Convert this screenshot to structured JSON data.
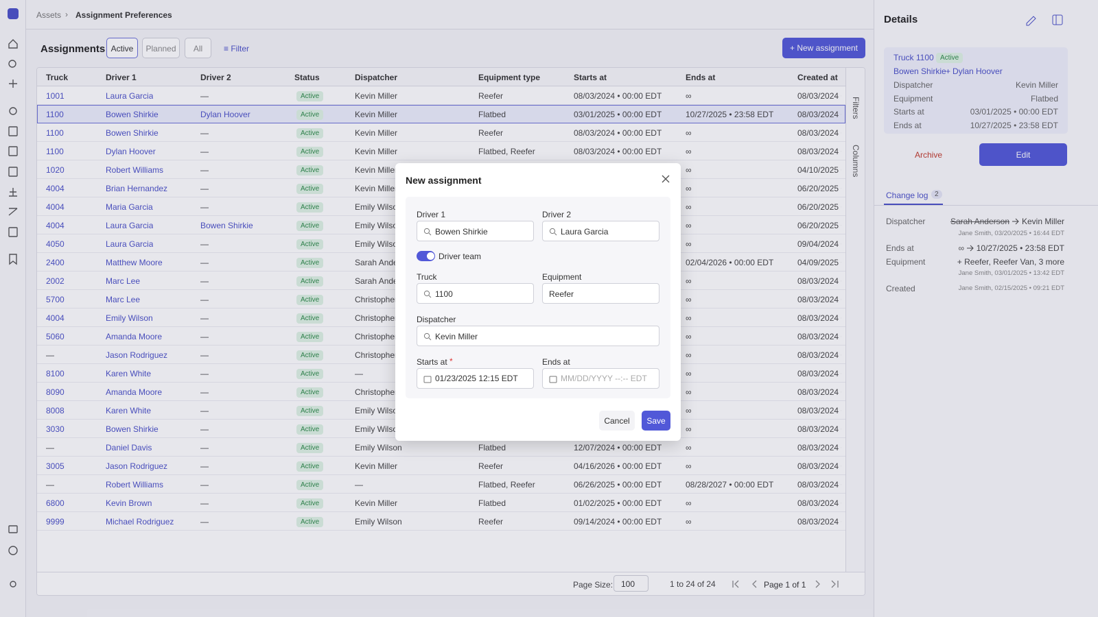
{
  "breadcrumb": [
    "Assets",
    "Assignment Preferences"
  ],
  "toolbar": {
    "title": "Assignments",
    "tabs": [
      "Active",
      "Planned",
      "All"
    ],
    "filter": "Filter",
    "new_button": "New assignment"
  },
  "table": {
    "columns": [
      "Truck",
      "Driver 1",
      "Driver 2",
      "Status",
      "Dispatcher",
      "Equipment type",
      "Starts at",
      "Ends at",
      "Created at"
    ],
    "rows": [
      [
        "1001",
        "Laura Garcia",
        "—",
        "Active",
        "Kevin Miller",
        "Reefer",
        "08/03/2024 • 00:00 EDT",
        "∞",
        "08/03/2024 •"
      ],
      [
        "1100",
        "Bowen Shirkie",
        "Dylan Hoover",
        "Active",
        "Kevin Miller",
        "Flatbed",
        "03/01/2025 • 00:00 EDT",
        "10/27/2025 • 23:58 EDT",
        "08/03/2024 •"
      ],
      [
        "1100",
        "Bowen Shirkie",
        "—",
        "Active",
        "Kevin Miller",
        "Reefer",
        "08/03/2024 • 00:00 EDT",
        "∞",
        "08/03/2024 •"
      ],
      [
        "1100",
        "Dylan Hoover",
        "—",
        "Active",
        "Kevin Miller",
        "Flatbed, Reefer",
        "08/03/2024 • 00:00 EDT",
        "∞",
        "08/03/2024 •"
      ],
      [
        "1020",
        "Robert Williams",
        "—",
        "Active",
        "Kevin Miller",
        null,
        null,
        "∞",
        "04/10/2025 •"
      ],
      [
        "4004",
        "Brian Hernandez",
        "—",
        "Active",
        "Kevin Miller",
        null,
        null,
        "∞",
        "06/20/2025 •"
      ],
      [
        "4004",
        "Maria Garcia",
        "—",
        "Active",
        "Emily Wilson",
        null,
        null,
        "∞",
        "06/20/2025 •"
      ],
      [
        "4004",
        "Laura Garcia",
        "Bowen Shirkie",
        "Active",
        "Emily Wilson",
        null,
        null,
        "∞",
        "06/20/2025 •"
      ],
      [
        "4050",
        "Laura Garcia",
        "—",
        "Active",
        "Emily Wilson",
        null,
        null,
        "∞",
        "09/04/2024 •"
      ],
      [
        "2400",
        "Matthew Moore",
        "—",
        "Active",
        "Sarah Anderson",
        null,
        null,
        "02/04/2026 • 00:00 EDT",
        "04/09/2025 •"
      ],
      [
        "2002",
        "Marc Lee",
        "—",
        "Active",
        "Sarah Anderson",
        null,
        null,
        "∞",
        "08/03/2024 •"
      ],
      [
        "5700",
        "Marc Lee",
        "—",
        "Active",
        "Christopher",
        null,
        null,
        "∞",
        "08/03/2024 •"
      ],
      [
        "4004",
        "Emily Wilson",
        "—",
        "Active",
        "Christopher",
        null,
        null,
        "∞",
        "08/03/2024 •"
      ],
      [
        "5060",
        "Amanda Moore",
        "—",
        "Active",
        "Christopher",
        null,
        null,
        "∞",
        "08/03/2024 •"
      ],
      [
        "—",
        "Jason Rodriguez",
        "—",
        "Active",
        "Christopher",
        null,
        null,
        "∞",
        "08/03/2024 •"
      ],
      [
        "8100",
        "Karen White",
        "—",
        "Active",
        "—",
        null,
        null,
        "∞",
        "08/03/2024 •"
      ],
      [
        "8090",
        "Amanda Moore",
        "—",
        "Active",
        "Christopher",
        null,
        null,
        "∞",
        "08/03/2024 •"
      ],
      [
        "8008",
        "Karen White",
        "—",
        "Active",
        "Emily Wilson",
        null,
        null,
        "∞",
        "08/03/2024 •"
      ],
      [
        "3030",
        "Bowen Shirkie",
        "—",
        "Active",
        "Emily Wilson",
        null,
        null,
        "∞",
        "08/03/2024 •"
      ],
      [
        "—",
        "Daniel Davis",
        "—",
        "Active",
        "Emily Wilson",
        "Flatbed",
        "12/07/2024 • 00:00 EDT",
        "∞",
        "08/03/2024 •"
      ],
      [
        "3005",
        "Jason Rodriguez",
        "—",
        "Active",
        "Kevin Miller",
        "Reefer",
        "04/16/2026 • 00:00 EDT",
        "∞",
        "08/03/2024 •"
      ],
      [
        "—",
        "Robert Williams",
        "—",
        "Active",
        "—",
        "Flatbed, Reefer",
        "06/26/2025 • 00:00 EDT",
        "08/28/2027 • 00:00 EDT",
        "08/03/2024 •"
      ],
      [
        "6800",
        "Kevin Brown",
        "—",
        "Active",
        "Kevin Miller",
        "Flatbed",
        "01/02/2025 • 00:00 EDT",
        "∞",
        "08/03/2024 •"
      ],
      [
        "9999",
        "Michael Rodriguez",
        "—",
        "Active",
        "Emily Wilson",
        "Reefer",
        "09/14/2024 • 00:00 EDT",
        "∞",
        "08/03/2024 •"
      ]
    ]
  },
  "side_tabs": [
    "Filters",
    "Columns"
  ],
  "pagination": {
    "page_size_label": "Page Size:",
    "page_size": 100,
    "range": "1 to 24 of 24",
    "page": "Page 1 of 1"
  },
  "modal": {
    "title": "New assignment",
    "driver1": {
      "label": "Driver 1",
      "value": "Bowen Shirkie"
    },
    "driver2": {
      "label": "Driver 2",
      "value": "Laura Garcia"
    },
    "driver_team": "Driver team",
    "truck": {
      "label": "Truck",
      "value": "1100"
    },
    "equipment": {
      "label": "Equipment",
      "value": "Reefer"
    },
    "dispatcher": {
      "label": "Dispatcher",
      "value": "Kevin Miller"
    },
    "starts_at": {
      "label": "Starts at",
      "required": "*",
      "value": "01/23/2025 12:15 EDT"
    },
    "ends_at": {
      "label": "Ends at",
      "placeholder": "MM/DD/YYYY --:-- EDT"
    },
    "cancel": "Cancel",
    "save": "Save"
  },
  "details": {
    "title": "Details",
    "card": {
      "truck": "Truck 1100",
      "status": "Active",
      "driver1": "Bowen Shirkie",
      "joiner": "+",
      "driver2": "Dylan Hoover",
      "rows": [
        [
          "Dispatcher",
          "Kevin Miller"
        ],
        [
          "Equipment",
          "Flatbed"
        ],
        [
          "Starts at",
          "03/01/2025 • 00:00 EDT"
        ],
        [
          "Ends at",
          "10/27/2025 • 23:58 EDT"
        ]
      ]
    },
    "archive": "Archive",
    "edit": "Edit",
    "tab": "Change log",
    "tab_count": 2,
    "log": [
      {
        "field": "Dispatcher",
        "old": "Sarah Anderson",
        "new": "Kevin Miller",
        "meta": "Jane Smith, 03/20/2025 • 16:44 EDT"
      },
      {
        "field": "Ends at",
        "old": "∞",
        "new": "10/27/2025 • 23:58 EDT"
      },
      {
        "field": "Equipment",
        "new": "+ Reefer, Reefer Van, 3 more",
        "meta": "Jane Smith, 03/01/2025 • 13:42 EDT"
      },
      {
        "field": "Created",
        "meta": "Jane Smith, 02/15/2025 • 09:21 EDT"
      }
    ]
  }
}
